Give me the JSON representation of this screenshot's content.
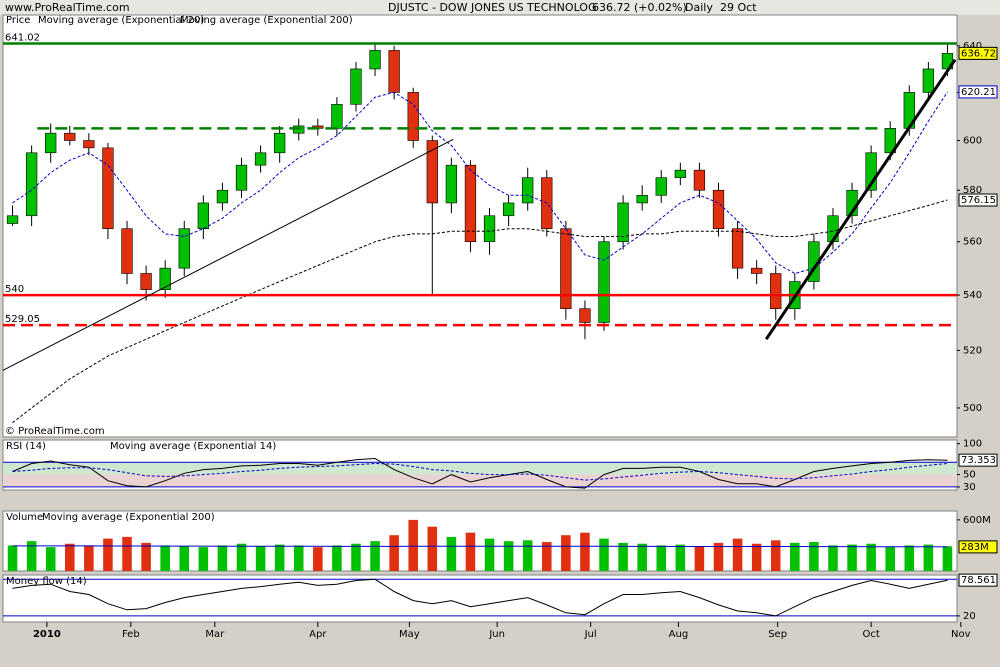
{
  "header": {
    "site": "www.ProRealTime.com",
    "title": "DJUSTC - DOW JONES US TECHNOLOG",
    "quote": "636.72 (+0.02%)",
    "period": "Daily",
    "date": "29 Oct"
  },
  "chart_data": [
    {
      "type": "candlestick",
      "label": "Price",
      "copyright": "© ProRealTime.com",
      "log": true,
      "open": [
        567,
        570,
        595,
        603,
        600,
        597,
        565,
        548,
        542,
        550,
        565,
        575,
        580,
        590,
        595,
        603,
        606,
        605,
        615,
        630,
        638,
        620,
        600,
        575,
        590,
        560,
        570,
        575,
        585,
        565,
        535,
        530,
        560,
        575,
        578,
        585,
        588,
        580,
        565,
        550,
        548,
        535,
        545,
        560,
        570,
        580,
        595,
        605,
        620,
        630
      ],
      "high": [
        574,
        598,
        607,
        606,
        603,
        599,
        568,
        551,
        553,
        568,
        578,
        583,
        593,
        598,
        606,
        609,
        609,
        618,
        633,
        641,
        640,
        622,
        602,
        593,
        592,
        573,
        578,
        589,
        588,
        568,
        538,
        562,
        578,
        582,
        588,
        591,
        591,
        583,
        568,
        553,
        551,
        548,
        563,
        573,
        583,
        598,
        608,
        623,
        633,
        641
      ],
      "low": [
        566,
        566,
        591,
        598,
        594,
        561,
        544,
        538,
        539,
        547,
        561,
        572,
        577,
        587,
        591,
        600,
        602,
        602,
        612,
        627,
        617,
        597,
        540,
        571,
        556,
        555,
        566,
        572,
        562,
        531,
        524,
        527,
        557,
        572,
        575,
        582,
        577,
        562,
        546,
        544,
        531,
        531,
        542,
        557,
        567,
        577,
        592,
        602,
        617,
        627
      ],
      "close": [
        570,
        595,
        603,
        600,
        597,
        565,
        548,
        542,
        550,
        565,
        575,
        580,
        590,
        595,
        603,
        606,
        605,
        615,
        630,
        638,
        620,
        600,
        575,
        590,
        560,
        570,
        575,
        585,
        565,
        535,
        530,
        560,
        575,
        578,
        585,
        588,
        580,
        565,
        550,
        548,
        535,
        545,
        560,
        570,
        580,
        595,
        605,
        620,
        630,
        636.72
      ],
      "up_color": "#00c000",
      "down_color": "#e03010",
      "current_color": "#ffff00",
      "series": [
        {
          "name": "Moving average (Exponential 20)",
          "color": "#0000cc",
          "dash": true,
          "values": [
            575,
            580,
            587,
            592,
            595,
            590,
            580,
            570,
            563,
            562,
            565,
            569,
            575,
            580,
            587,
            593,
            597,
            602,
            610,
            618,
            620,
            615,
            604,
            598,
            588,
            582,
            578,
            578,
            575,
            565,
            555,
            553,
            558,
            563,
            569,
            575,
            578,
            575,
            568,
            561,
            552,
            548,
            550,
            556,
            563,
            573,
            583,
            595,
            608,
            620.21
          ]
        },
        {
          "name": "Moving average (Exponential 200)",
          "color": "#000000",
          "dash": true,
          "values": [
            495,
            500,
            505,
            510,
            514,
            518,
            521,
            524,
            527,
            530,
            533,
            536,
            539,
            542,
            545,
            548,
            551,
            554,
            557,
            560,
            562,
            563,
            563,
            564,
            564,
            564,
            565,
            565,
            564,
            563,
            562,
            562,
            562,
            563,
            563,
            564,
            564,
            564,
            564,
            563,
            562,
            562,
            563,
            564,
            566,
            568,
            570,
            572,
            574,
            576.15
          ]
        }
      ],
      "ylim": [
        490.2,
        653.6
      ],
      "yticks": [
        500,
        520,
        540,
        560,
        580,
        600,
        620,
        640
      ],
      "xlim": [
        -0.5,
        49.5
      ],
      "xticks": [
        {
          "value": 1.8,
          "label": "2010"
        },
        {
          "value": 6.2,
          "label": "Feb"
        },
        {
          "value": 10.6,
          "label": "Mar"
        },
        {
          "value": 16,
          "label": "Apr"
        },
        {
          "value": 20.8,
          "label": "May"
        },
        {
          "value": 25.4,
          "label": "Jun"
        },
        {
          "value": 30.3,
          "label": "Jul"
        },
        {
          "value": 34.9,
          "label": "Aug"
        },
        {
          "value": 40.1,
          "label": "Sep"
        },
        {
          "value": 45,
          "label": "Oct"
        },
        {
          "value": 49.7,
          "label": "Nov"
        }
      ],
      "levels": [
        {
          "value": 641.02,
          "color": "#008000",
          "dash": false,
          "labeled": true
        },
        {
          "value": 605,
          "color": "#008000",
          "dash": true,
          "labeled": false,
          "xrange": [
            1.3,
            45.5
          ]
        },
        {
          "value": 540,
          "color": "#ff0000",
          "dash": false,
          "labeled": true
        },
        {
          "value": 529.05,
          "color": "#ff0000",
          "dash": true,
          "labeled": true
        }
      ],
      "trendlines": [
        {
          "x": [
            -0.5,
            23.1
          ],
          "y": [
            513,
            600.5
          ],
          "color": "#000000",
          "width": 1
        },
        {
          "x": [
            39.5,
            49.4
          ],
          "y": [
            524,
            634
          ],
          "color": "#000000",
          "width": 3
        }
      ]
    },
    {
      "type": "line",
      "label": "RSI (14)",
      "series": [
        {
          "name": "RSI (14)",
          "color": "#000000",
          "dash": false,
          "values": [
            55,
            68,
            72,
            66,
            62,
            40,
            32,
            30,
            40,
            52,
            58,
            60,
            64,
            65,
            68,
            68,
            65,
            70,
            74,
            76,
            58,
            45,
            35,
            50,
            38,
            45,
            50,
            55,
            42,
            30,
            28,
            50,
            60,
            60,
            62,
            62,
            55,
            42,
            35,
            35,
            30,
            42,
            55,
            60,
            64,
            68,
            70,
            73,
            74,
            73.353
          ]
        },
        {
          "name": "Moving average (Exponential 14)",
          "color": "#0000cc",
          "dash": true,
          "values": [
            55,
            57,
            60,
            61,
            61,
            58,
            53,
            48,
            47,
            48,
            50,
            52,
            55,
            57,
            60,
            62,
            63,
            64,
            66,
            68,
            67,
            63,
            58,
            56,
            52,
            50,
            50,
            51,
            49,
            45,
            41,
            43,
            46,
            49,
            52,
            54,
            55,
            53,
            50,
            47,
            44,
            43,
            45,
            48,
            51,
            55,
            58,
            62,
            65,
            68
          ]
        }
      ],
      "ylim": [
        25,
        106
      ],
      "yticks": [
        100,
        50,
        30
      ],
      "levels": [
        70,
        30
      ],
      "shade": [
        {
          "from": 50,
          "to": 70,
          "color": "#cfe6cf"
        },
        {
          "from": 30,
          "to": 50,
          "color": "#ecd3d3"
        }
      ]
    },
    {
      "type": "bar",
      "series": [
        {
          "name": "Volume",
          "color": "#00c000",
          "values": [
            300,
            350,
            280,
            320,
            300,
            380,
            400,
            330,
            300,
            290,
            280,
            300,
            320,
            290,
            310,
            300,
            280,
            300,
            320,
            350,
            420,
            600,
            520,
            400,
            450,
            380,
            350,
            360,
            340,
            420,
            450,
            380,
            330,
            320,
            300,
            310,
            290,
            330,
            380,
            320,
            360,
            330,
            340,
            300,
            310,
            320,
            280,
            300,
            310,
            290
          ]
        },
        {
          "name": "Moving average (Exponential 200)",
          "color": "#0000cc",
          "current_label": "283M",
          "values": [
            295,
            295,
            294,
            294,
            294,
            293,
            293,
            293,
            292,
            292,
            292,
            291,
            291,
            291,
            290,
            290,
            290,
            289,
            289,
            289,
            289,
            290,
            291,
            291,
            291,
            291,
            291,
            291,
            290,
            290,
            290,
            290,
            289,
            289,
            289,
            288,
            288,
            288,
            288,
            287,
            287,
            287,
            286,
            286,
            286,
            285,
            285,
            284,
            284,
            283
          ]
        }
      ],
      "ylim": [
        0,
        704
      ],
      "yticks": [
        {
          "value": 600,
          "label": "600M"
        }
      ]
    },
    {
      "type": "line",
      "series": [
        {
          "name": "Money flow (14)",
          "color": "#000000",
          "dash": false,
          "values": [
            65,
            70,
            72,
            60,
            55,
            40,
            30,
            32,
            42,
            50,
            55,
            60,
            65,
            68,
            72,
            75,
            70,
            72,
            78,
            80,
            60,
            45,
            40,
            45,
            35,
            40,
            45,
            50,
            38,
            25,
            22,
            40,
            55,
            55,
            58,
            60,
            50,
            38,
            28,
            25,
            20,
            35,
            50,
            60,
            70,
            78,
            72,
            65,
            72,
            78.561
          ]
        }
      ],
      "ylim": [
        10,
        87
      ],
      "yticks": [
        20
      ],
      "levels": [
        80,
        20
      ]
    }
  ]
}
